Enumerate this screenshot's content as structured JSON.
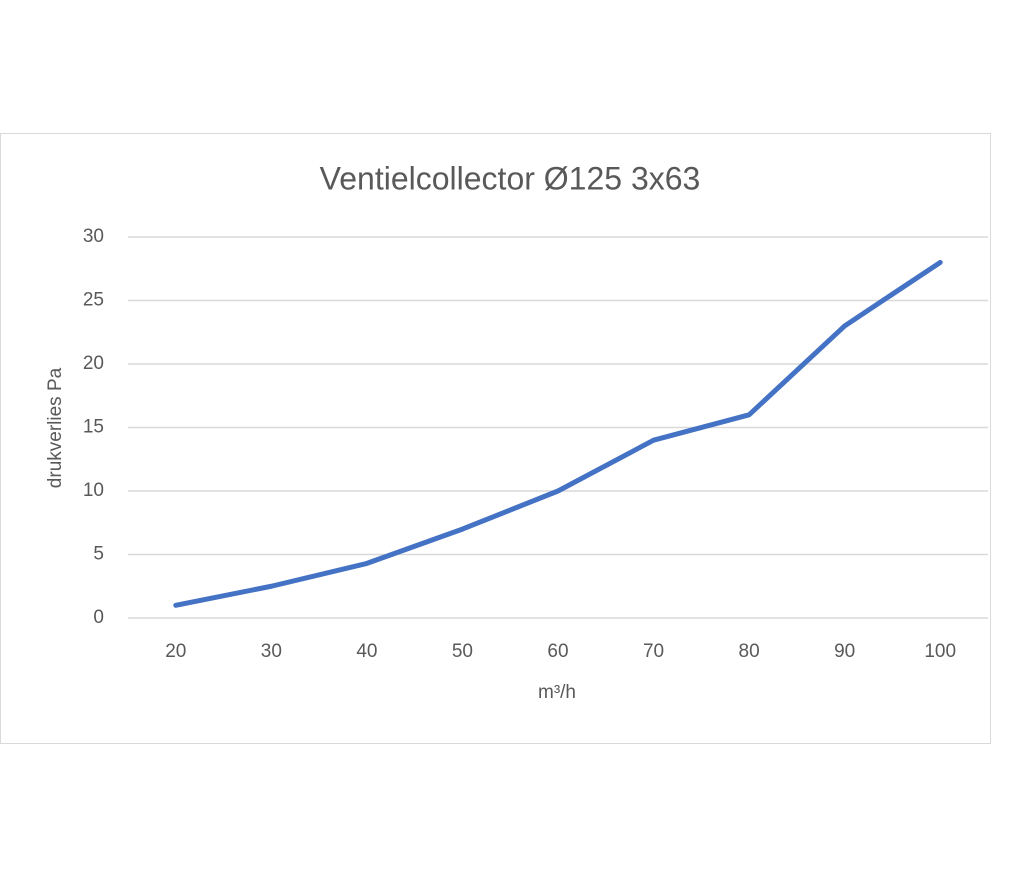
{
  "chart_data": {
    "type": "line",
    "title": "Ventielcollector Ø125 3x63",
    "x_label": "m³/h",
    "y_label": "drukverlies Pa",
    "categories": [
      20,
      30,
      40,
      50,
      60,
      70,
      80,
      90,
      100
    ],
    "values": [
      1,
      2.5,
      4.3,
      7,
      10,
      14,
      16,
      23,
      28
    ],
    "color": "#4472c4",
    "ylim": [
      0,
      30
    ],
    "yticks": [
      0,
      5,
      10,
      15,
      20,
      25,
      30
    ],
    "grid": true
  }
}
